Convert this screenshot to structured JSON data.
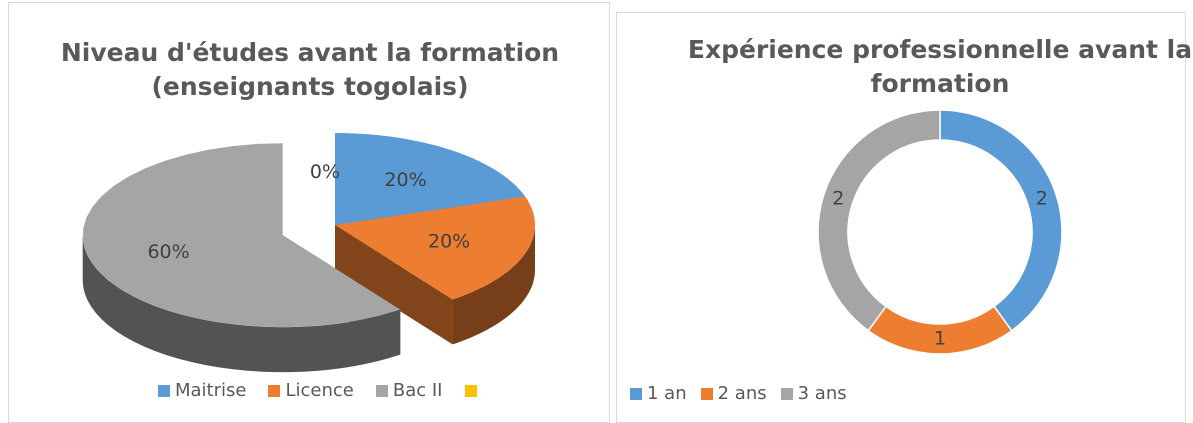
{
  "chart_data": [
    {
      "type": "pie3d",
      "title": "Niveau d'études avant la formation (enseignants togolais)",
      "categories": [
        "Maitrise",
        "Licence",
        "Bac II",
        null
      ],
      "values": [
        20,
        20,
        60,
        0
      ],
      "value_labels": [
        "20%",
        "20%",
        "60%",
        "0%"
      ],
      "colors": [
        "#5b9bd5",
        "#ed7d31",
        "#a5a5a5",
        "#ffc000"
      ]
    },
    {
      "type": "donut",
      "title": "Expérience professionnelle avant la formation",
      "categories": [
        "1 an",
        "2 ans",
        "3 ans"
      ],
      "values": [
        2,
        1,
        2
      ],
      "colors": [
        "#5b9bd5",
        "#ed7d31",
        "#a5a5a5"
      ]
    }
  ]
}
